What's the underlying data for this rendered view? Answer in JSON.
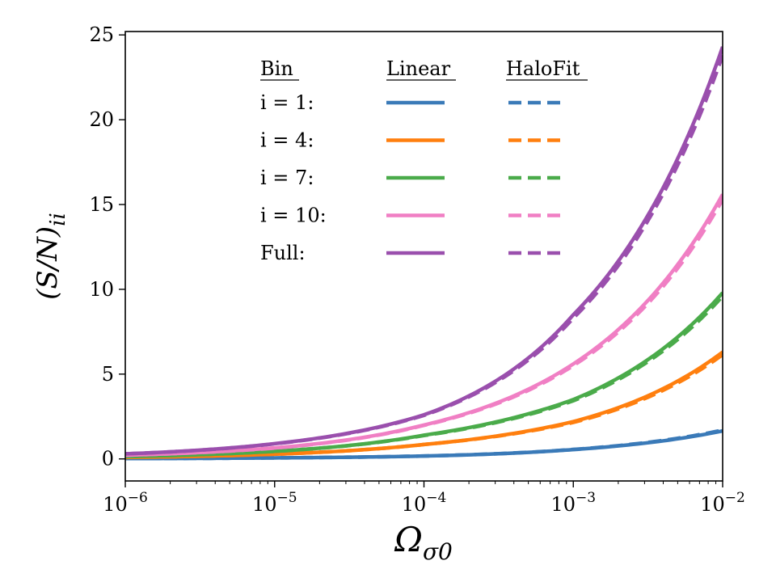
{
  "chart_data": {
    "type": "line",
    "xlabel": "Ω_σ0",
    "ylabel": "(S/N)_ii",
    "xscale": "log",
    "xlim": [
      1e-06,
      0.01
    ],
    "ylim": [
      -1.3,
      25.2
    ],
    "x_ticks": [
      {
        "value": 1e-06,
        "base": "10",
        "exp": "−6"
      },
      {
        "value": 1e-05,
        "base": "10",
        "exp": "−5"
      },
      {
        "value": 0.0001,
        "base": "10",
        "exp": "−4"
      },
      {
        "value": 0.001,
        "base": "10",
        "exp": "−3"
      },
      {
        "value": 0.01,
        "base": "10",
        "exp": "−2"
      }
    ],
    "y_ticks": [
      {
        "value": 0,
        "label": "0"
      },
      {
        "value": 5,
        "label": "5"
      },
      {
        "value": 10,
        "label": "10"
      },
      {
        "value": 15,
        "label": "15"
      },
      {
        "value": 20,
        "label": "20"
      },
      {
        "value": 25,
        "label": "25"
      }
    ],
    "legend": {
      "header_bin": "Bin",
      "header_linear": "Linear",
      "header_halofit": "HaloFit",
      "placement": "top-center"
    },
    "x": [
      1e-06,
      1e-05,
      0.0001,
      0.001,
      0.01
    ],
    "series": [
      {
        "name": "i = 1:",
        "color": "#3a7ab8",
        "linear": [
          0.02,
          0.06,
          0.17,
          0.55,
          1.65
        ],
        "halofit": [
          0.02,
          0.06,
          0.17,
          0.56,
          1.7
        ]
      },
      {
        "name": "i = 4:",
        "color": "#ff7f0e",
        "linear": [
          0.09,
          0.28,
          0.85,
          2.2,
          6.3
        ],
        "halofit": [
          0.09,
          0.28,
          0.85,
          2.15,
          6.15
        ]
      },
      {
        "name": "i = 7:",
        "color": "#4aab4a",
        "linear": [
          0.14,
          0.45,
          1.4,
          3.5,
          9.8
        ],
        "halofit": [
          0.14,
          0.45,
          1.38,
          3.43,
          9.6
        ]
      },
      {
        "name": "i = 10:",
        "color": "#f07fc4",
        "linear": [
          0.22,
          0.65,
          2.0,
          5.6,
          15.6
        ],
        "halofit": [
          0.22,
          0.64,
          1.98,
          5.5,
          15.3
        ]
      },
      {
        "name": "Full:",
        "color": "#9a4fad",
        "linear": [
          0.3,
          0.9,
          2.6,
          8.5,
          24.3
        ],
        "halofit": [
          0.3,
          0.89,
          2.57,
          8.3,
          23.8
        ]
      }
    ]
  }
}
